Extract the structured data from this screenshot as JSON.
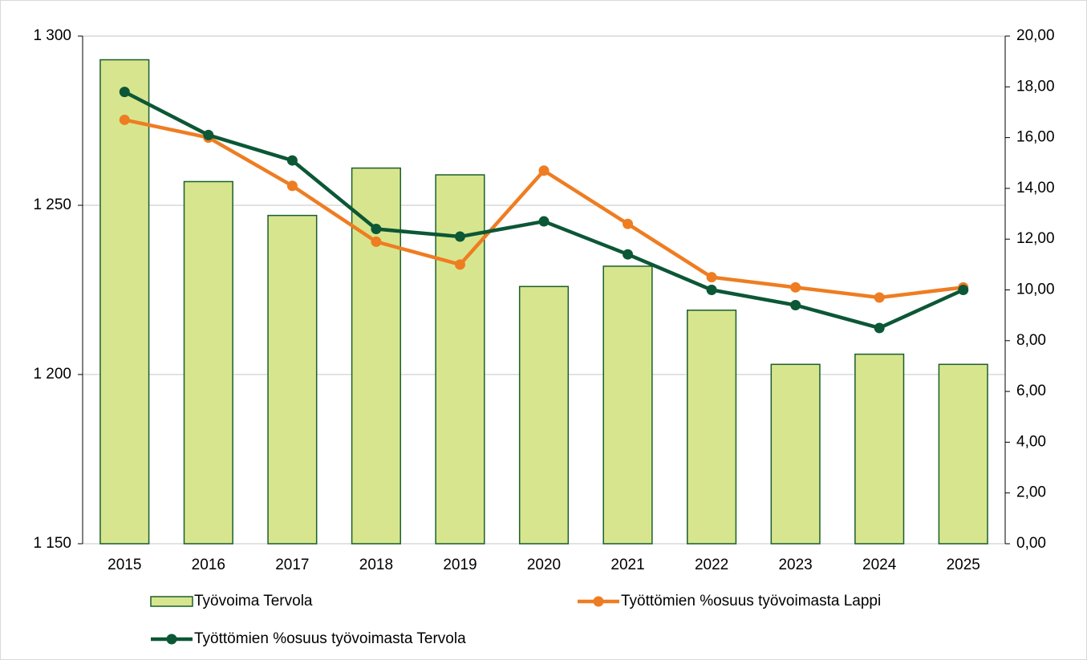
{
  "chart_data": {
    "type": "combo",
    "categories": [
      "2015",
      "2016",
      "2017",
      "2018",
      "2019",
      "2020",
      "2021",
      "2022",
      "2023",
      "2024",
      "2025"
    ],
    "ylim": [
      1150,
      1300
    ],
    "yticks": [
      {
        "value": 1150,
        "label": "1 150"
      },
      {
        "value": 1200,
        "label": "1 200"
      },
      {
        "value": 1250,
        "label": "1 250"
      },
      {
        "value": 1300,
        "label": "1 300"
      }
    ],
    "y2lim": [
      0,
      20
    ],
    "y2ticks": [
      {
        "value": 0,
        "label": "0,00"
      },
      {
        "value": 2,
        "label": "2,00"
      },
      {
        "value": 4,
        "label": "4,00"
      },
      {
        "value": 6,
        "label": "6,00"
      },
      {
        "value": 8,
        "label": "8,00"
      },
      {
        "value": 10,
        "label": "10,00"
      },
      {
        "value": 12,
        "label": "12,00"
      },
      {
        "value": 14,
        "label": "14,00"
      },
      {
        "value": 16,
        "label": "16,00"
      },
      {
        "value": 18,
        "label": "18,00"
      },
      {
        "value": 20,
        "label": "20,00"
      }
    ],
    "grid": true,
    "series": [
      {
        "name": "Työvoima Tervola",
        "type": "bar",
        "color": "#d7e68e",
        "edge": "#1b5e2c",
        "values": [
          1293,
          1257,
          1247,
          1261,
          1259,
          1226,
          1232,
          1219,
          1203,
          1206,
          1203
        ]
      },
      {
        "name": "Työttömien %osuus työvoimasta Lappi",
        "type": "line",
        "axis": "y2",
        "color": "#ee7d22",
        "values": [
          16.7,
          16.0,
          14.1,
          11.9,
          11.0,
          14.7,
          12.6,
          10.5,
          10.1,
          9.7,
          10.1
        ]
      },
      {
        "name": "Työttömien %osuus työvoimasta Tervola",
        "type": "line",
        "axis": "y2",
        "color": "#0c5736",
        "values": [
          17.8,
          16.1,
          15.1,
          12.4,
          12.1,
          12.7,
          11.4,
          10.0,
          9.4,
          8.5,
          10.0
        ]
      }
    ]
  }
}
